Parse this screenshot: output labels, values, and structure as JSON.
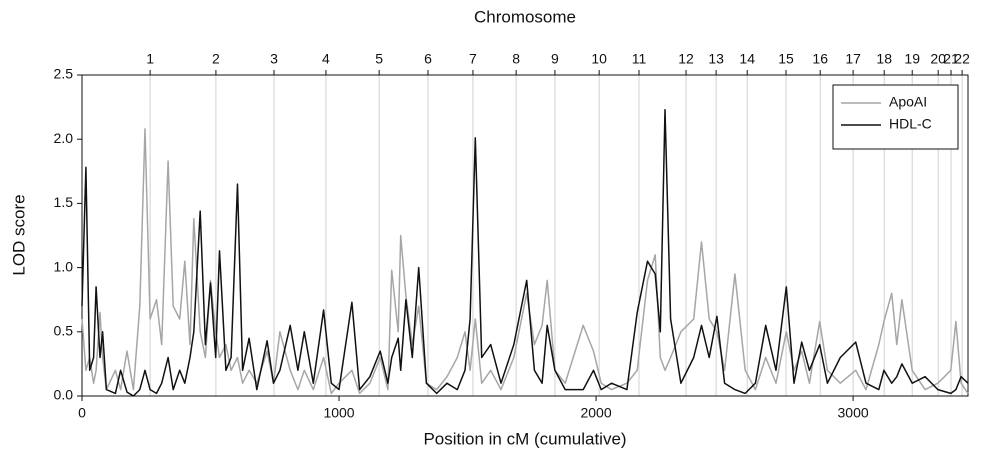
{
  "chart_data": {
    "type": "line",
    "top_axis_title": "Chromosome",
    "xlabel": "Position in cM (cumulative)",
    "ylabel": "LOD score",
    "xlim": [
      0,
      3447
    ],
    "ylim": [
      0,
      2.5
    ],
    "xticks": [
      0,
      1000,
      2000,
      3000
    ],
    "yticks": [
      {
        "value": 0,
        "label": "0.0"
      },
      {
        "value": 0.5,
        "label": "0.5"
      },
      {
        "value": 1,
        "label": "1.0"
      },
      {
        "value": 1.5,
        "label": "1.5"
      },
      {
        "value": 2,
        "label": "2.0"
      },
      {
        "value": 2.5,
        "label": "2.5"
      }
    ],
    "chromosome_ticks": [
      {
        "value": 265,
        "label": "1"
      },
      {
        "value": 521,
        "label": "2"
      },
      {
        "value": 747,
        "label": "3"
      },
      {
        "value": 949,
        "label": "4"
      },
      {
        "value": 1156,
        "label": "5"
      },
      {
        "value": 1346,
        "label": "6"
      },
      {
        "value": 1521,
        "label": "7"
      },
      {
        "value": 1689,
        "label": "8"
      },
      {
        "value": 1840,
        "label": "9"
      },
      {
        "value": 2012,
        "label": "10"
      },
      {
        "value": 2167,
        "label": "11"
      },
      {
        "value": 2350,
        "label": "12"
      },
      {
        "value": 2467,
        "label": "13"
      },
      {
        "value": 2588,
        "label": "14"
      },
      {
        "value": 2739,
        "label": "15"
      },
      {
        "value": 2872,
        "label": "16"
      },
      {
        "value": 3000,
        "label": "17"
      },
      {
        "value": 3121,
        "label": "18"
      },
      {
        "value": 3230,
        "label": "19"
      },
      {
        "value": 3331,
        "label": "20"
      },
      {
        "value": 3381,
        "label": "21"
      },
      {
        "value": 3424,
        "label": "22"
      }
    ],
    "chromosome_grid": true,
    "legend": "upper right",
    "x": [
      0,
      15,
      30,
      45,
      55,
      70,
      80,
      95,
      130,
      150,
      175,
      200,
      225,
      245,
      265,
      290,
      310,
      335,
      355,
      380,
      400,
      420,
      435,
      460,
      480,
      500,
      520,
      535,
      560,
      580,
      605,
      625,
      650,
      680,
      720,
      745,
      770,
      810,
      840,
      865,
      900,
      940,
      970,
      1000,
      1050,
      1080,
      1120,
      1160,
      1190,
      1205,
      1230,
      1240,
      1260,
      1285,
      1310,
      1340,
      1380,
      1420,
      1460,
      1490,
      1510,
      1530,
      1555,
      1590,
      1630,
      1680,
      1730,
      1760,
      1790,
      1810,
      1840,
      1880,
      1950,
      1990,
      2020,
      2060,
      2120,
      2160,
      2200,
      2230,
      2250,
      2268,
      2290,
      2330,
      2380,
      2410,
      2440,
      2470,
      2500,
      2540,
      2580,
      2620,
      2660,
      2700,
      2740,
      2770,
      2800,
      2830,
      2870,
      2900,
      2950,
      3010,
      3050,
      3100,
      3120,
      3150,
      3170,
      3190,
      3230,
      3280,
      3330,
      3380,
      3400,
      3420,
      3447
    ],
    "series": [
      {
        "name": "ApoAI",
        "color": "#a6a6a6",
        "values": [
          0.6,
          0.2,
          0.3,
          0.1,
          0.2,
          0.65,
          0.3,
          0.05,
          0.2,
          0.05,
          0.35,
          0.05,
          0.7,
          2.08,
          0.6,
          0.75,
          0.4,
          1.83,
          0.7,
          0.6,
          1.05,
          0.4,
          1.38,
          0.5,
          0.3,
          0.9,
          0.5,
          0.3,
          0.4,
          0.2,
          0.3,
          0.1,
          0.2,
          0.1,
          0.35,
          0.1,
          0.5,
          0.2,
          0.05,
          0.2,
          0.05,
          0.3,
          0.02,
          0.1,
          0.2,
          0.02,
          0.1,
          0.3,
          0.05,
          0.98,
          0.5,
          1.25,
          0.78,
          0.4,
          0.7,
          0.1,
          0.05,
          0.15,
          0.3,
          0.5,
          0.2,
          0.6,
          0.1,
          0.2,
          0.05,
          0.3,
          0.8,
          0.4,
          0.55,
          0.9,
          0.2,
          0.1,
          0.55,
          0.35,
          0.1,
          0.05,
          0.1,
          0.2,
          0.9,
          1.1,
          0.3,
          0.2,
          0.3,
          0.5,
          0.6,
          1.2,
          0.6,
          0.5,
          0.2,
          0.95,
          0.2,
          0.05,
          0.3,
          0.1,
          0.5,
          0.2,
          0.35,
          0.1,
          0.58,
          0.2,
          0.1,
          0.2,
          0.05,
          0.4,
          0.58,
          0.8,
          0.4,
          0.75,
          0.2,
          0.05,
          0.1,
          0.2,
          0.58,
          0.1,
          0.02
        ]
      },
      {
        "name": "HDL-C",
        "color": "#111111",
        "values": [
          0.7,
          1.78,
          0.2,
          0.3,
          0.85,
          0.3,
          0.5,
          0.05,
          0.02,
          0.2,
          0.03,
          0.0,
          0.05,
          0.2,
          0.05,
          0.02,
          0.1,
          0.3,
          0.05,
          0.2,
          0.1,
          0.3,
          0.5,
          1.44,
          0.4,
          0.88,
          0.3,
          1.13,
          0.2,
          0.3,
          1.65,
          0.2,
          0.45,
          0.05,
          0.43,
          0.1,
          0.2,
          0.55,
          0.2,
          0.5,
          0.1,
          0.67,
          0.1,
          0.05,
          0.73,
          0.05,
          0.15,
          0.35,
          0.1,
          0.3,
          0.45,
          0.2,
          0.75,
          0.3,
          1.0,
          0.1,
          0.02,
          0.1,
          0.05,
          0.2,
          0.6,
          2.01,
          0.3,
          0.4,
          0.1,
          0.4,
          0.9,
          0.2,
          0.1,
          0.55,
          0.2,
          0.05,
          0.05,
          0.2,
          0.05,
          0.1,
          0.05,
          0.65,
          1.05,
          0.95,
          0.5,
          2.23,
          0.6,
          0.1,
          0.3,
          0.55,
          0.3,
          0.62,
          0.1,
          0.05,
          0.02,
          0.1,
          0.55,
          0.2,
          0.85,
          0.1,
          0.42,
          0.2,
          0.4,
          0.1,
          0.3,
          0.42,
          0.1,
          0.05,
          0.2,
          0.1,
          0.15,
          0.25,
          0.1,
          0.15,
          0.05,
          0.02,
          0.05,
          0.15,
          0.1
        ]
      }
    ]
  }
}
